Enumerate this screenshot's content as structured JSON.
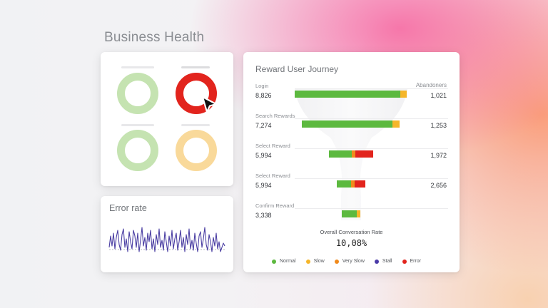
{
  "page": {
    "title": "Business Health"
  },
  "health": {
    "rings": [
      {
        "name": "ring-1",
        "color": "#c5e3b1",
        "status": "good"
      },
      {
        "name": "ring-2",
        "color": "#e2241d",
        "status": "critical"
      },
      {
        "name": "ring-3",
        "color": "#c5e3b1",
        "status": "good"
      },
      {
        "name": "ring-4",
        "color": "#f9d99a",
        "status": "warning"
      }
    ]
  },
  "error_rate": {
    "title": "Error rate"
  },
  "journey": {
    "title": "Reward User Journey",
    "abandoners_label": "Abandoners",
    "stages": [
      {
        "label": "Login",
        "value": "8,826",
        "abandoners": "1,021",
        "segments": [
          {
            "status": "normal",
            "w": 0.94
          },
          {
            "status": "slow",
            "w": 0.06
          }
        ]
      },
      {
        "label": "Search Rewards",
        "value": "7,274",
        "abandoners": "1,253",
        "segments": [
          {
            "status": "normal",
            "w": 0.93
          },
          {
            "status": "slow",
            "w": 0.07
          }
        ]
      },
      {
        "label": "Select Reward",
        "value": "5,994",
        "abandoners": "1,972",
        "segments": [
          {
            "status": "normal",
            "w": 0.52
          },
          {
            "status": "very_slow",
            "w": 0.08
          },
          {
            "status": "error",
            "w": 0.4
          }
        ]
      },
      {
        "label": "Select Reward",
        "value": "5,994",
        "abandoners": "2,656",
        "segments": [
          {
            "status": "normal",
            "w": 0.5
          },
          {
            "status": "very_slow",
            "w": 0.12
          },
          {
            "status": "error",
            "w": 0.38
          }
        ]
      },
      {
        "label": "Confirm Reward",
        "value": "3,338",
        "abandoners": "",
        "segments": [
          {
            "status": "normal",
            "w": 0.8
          },
          {
            "status": "slow",
            "w": 0.2
          }
        ]
      }
    ],
    "conversion_label": "Overall Conversation Rate",
    "conversion_value": "10,08%",
    "legend": [
      {
        "key": "normal",
        "label": "Normal",
        "color": "#5cb93f"
      },
      {
        "key": "slow",
        "label": "Slow",
        "color": "#f5b62a"
      },
      {
        "key": "very_slow",
        "label": "Very Slow",
        "color": "#f08a1c"
      },
      {
        "key": "stall",
        "label": "Stall",
        "color": "#4a3aa8"
      },
      {
        "key": "error",
        "label": "Error",
        "color": "#e2241d"
      }
    ]
  }
}
